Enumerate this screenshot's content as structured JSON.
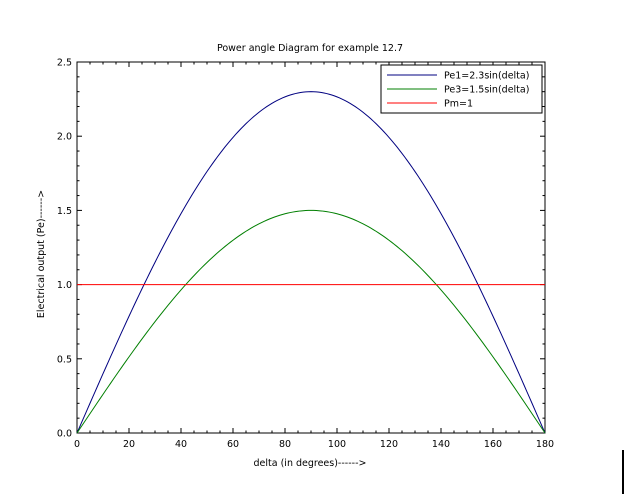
{
  "chart_data": {
    "type": "line",
    "title": "Power angle Diagram for example 12.7",
    "xlabel": "delta (in degrees)------>",
    "ylabel": "Electrical output (Pe)------>",
    "xlim": [
      0,
      180
    ],
    "ylim": [
      0,
      2.5
    ],
    "x_ticks": [
      0,
      20,
      40,
      60,
      80,
      100,
      120,
      140,
      160,
      180
    ],
    "x_tick_labels": [
      "0",
      "20",
      "40",
      "60",
      "80",
      "100",
      "120",
      "140",
      "160",
      "180"
    ],
    "y_ticks": [
      0,
      0.5,
      1.0,
      1.5,
      2.0,
      2.5
    ],
    "y_tick_labels": [
      "0.0",
      "0.5",
      "1.0",
      "1.5",
      "2.0",
      "2.5"
    ],
    "grid": false,
    "legend_position": "top-right",
    "series": [
      {
        "name": "Pe1=2.3sin(delta)",
        "color": "#000080",
        "amplitude": 2.3,
        "x": [
          0,
          10,
          20,
          30,
          40,
          50,
          60,
          70,
          80,
          90,
          100,
          110,
          120,
          130,
          140,
          150,
          160,
          170,
          180
        ],
        "y": [
          0,
          0.3994,
          0.7866,
          1.15,
          1.4784,
          1.7619,
          1.9919,
          2.1613,
          2.2651,
          2.3,
          2.2651,
          2.1613,
          1.9919,
          1.7619,
          1.4784,
          1.15,
          0.7866,
          0.3994,
          0
        ]
      },
      {
        "name": "Pe3=1.5sin(delta)",
        "color": "#007f00",
        "amplitude": 1.5,
        "x": [
          0,
          10,
          20,
          30,
          40,
          50,
          60,
          70,
          80,
          90,
          100,
          110,
          120,
          130,
          140,
          150,
          160,
          170,
          180
        ],
        "y": [
          0,
          0.2605,
          0.513,
          0.75,
          0.9642,
          1.1491,
          1.299,
          1.4095,
          1.4772,
          1.5,
          1.4772,
          1.4095,
          1.299,
          1.1491,
          0.9642,
          0.75,
          0.513,
          0.2605,
          0
        ]
      },
      {
        "name": "Pm=1",
        "color": "#ff0000",
        "x": [
          0,
          180
        ],
        "y": [
          1,
          1
        ]
      }
    ]
  }
}
